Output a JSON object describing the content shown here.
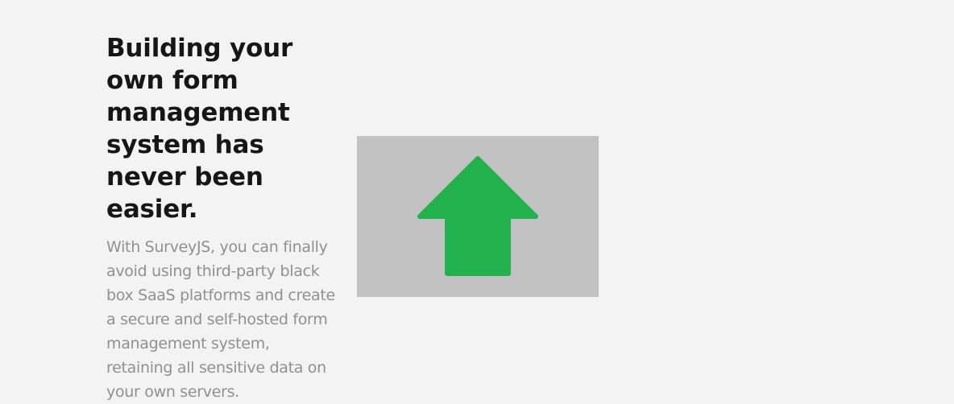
{
  "hero": {
    "headline": "Building your own form management system has never been easier.",
    "description": "With SurveyJS, you can finally avoid using third-party black box SaaS platforms and create a secure and self-hosted form management system, retaining all sensitive data on your own servers.",
    "image": {
      "icon": "arrow-up-icon",
      "arrow_color": "#22b14c",
      "background_color": "#c2c2c2"
    }
  }
}
